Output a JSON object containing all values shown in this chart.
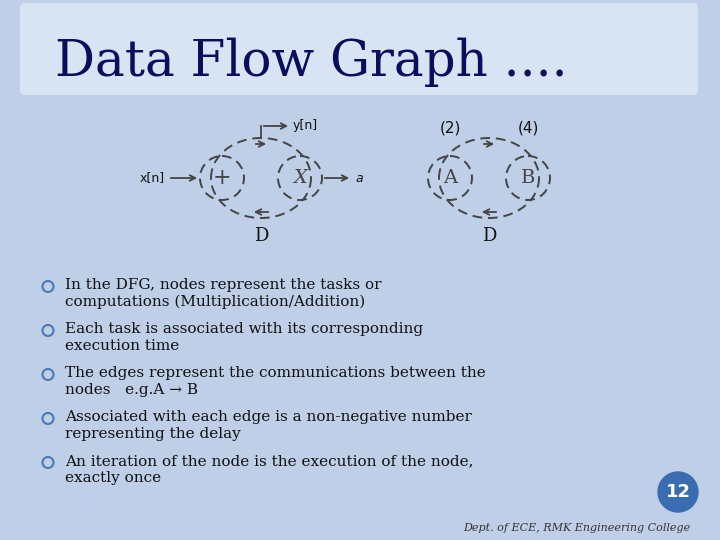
{
  "title": "Data Flow Graph ....",
  "title_fontsize": 36,
  "bg_color": "#bfcfe8",
  "header_bg": "#d8e4f4",
  "body_text_color": "#111111",
  "bullet_color": "#4a7ab5",
  "bullet_points": [
    [
      "In the DFG, nodes represent the tasks or",
      "computations (Multiplication/Addition)"
    ],
    [
      "Each task is associated with its corresponding",
      "execution time"
    ],
    [
      "The edges represent the communications between the",
      "nodes   e.g.A → B"
    ],
    [
      "Associated with each edge is a non-negative number",
      "representing the delay"
    ],
    [
      "An iteration of the node is the execution of the node,",
      "exactly once"
    ]
  ],
  "page_number": "12",
  "footer_text": "Dept. of ECE, RMK Engineering College",
  "node_edge_color": "#444444",
  "arrow_color": "#444444"
}
